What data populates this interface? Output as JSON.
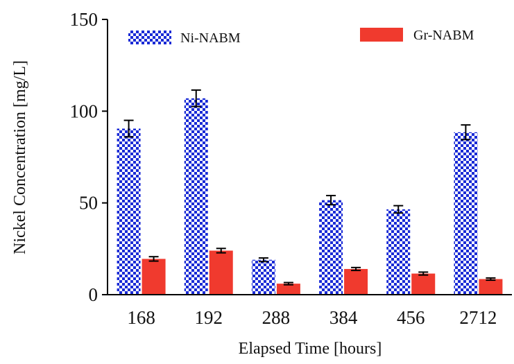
{
  "chart_data": {
    "type": "bar",
    "categories": [
      "168",
      "192",
      "288",
      "384",
      "456",
      "2712"
    ],
    "series": [
      {
        "name": "Ni-NABM",
        "values": [
          90.5,
          107,
          19,
          51.5,
          46.5,
          88.5
        ],
        "errors": [
          4.5,
          4.5,
          1,
          2.5,
          2,
          4
        ],
        "color": "#1a2bd6",
        "pattern": "checkerboard"
      },
      {
        "name": "Gr-NABM",
        "values": [
          19.5,
          24,
          6,
          14,
          11.5,
          8.5
        ],
        "errors": [
          1.2,
          1.2,
          0.6,
          0.8,
          0.8,
          0.6
        ],
        "color": "#f03a2e",
        "pattern": "solid"
      }
    ],
    "xlabel": "Elapsed Time [hours]",
    "ylabel": "Nickel Concentration [mg/L]",
    "ylim": [
      0,
      150
    ],
    "yticks": [
      "0",
      "50",
      "100",
      "150"
    ],
    "grid": false,
    "legend": "top"
  }
}
